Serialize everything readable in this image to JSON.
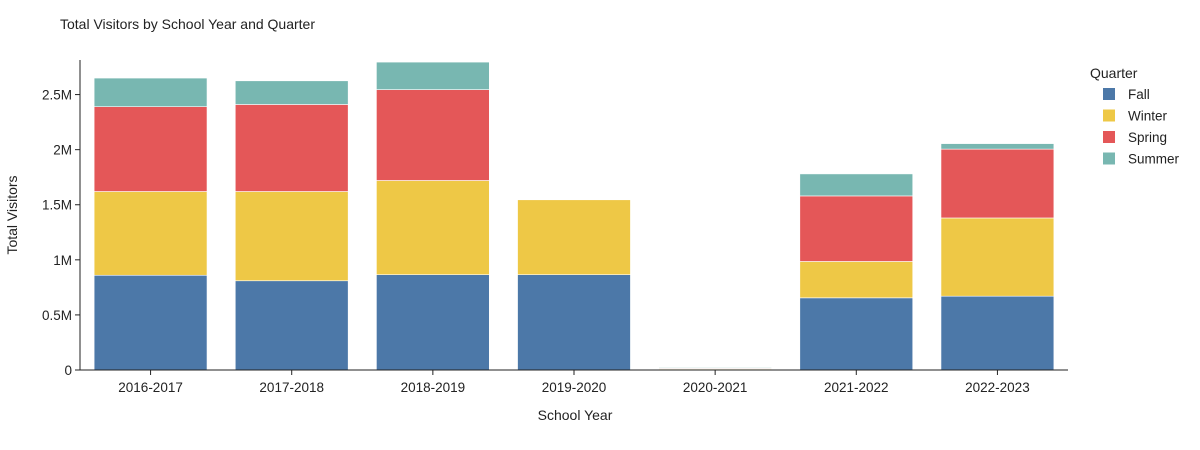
{
  "colors": {
    "Fall": "#4c78a8",
    "Winter": "#eec846",
    "Spring": "#e45758",
    "Summer": "#78b7b1",
    "axis": "#222222",
    "background": "#ffffff"
  },
  "chart_data": {
    "type": "bar",
    "stacked": true,
    "title": "Total Visitors by School Year and Quarter",
    "xlabel": "School Year",
    "ylabel": "Total Visitors",
    "ylim": [
      0,
      2950000
    ],
    "yticks": [
      0,
      500000,
      1000000,
      1500000,
      2000000,
      2500000
    ],
    "ytick_labels": [
      "0",
      "0.5M",
      "1M",
      "1.5M",
      "2M",
      "2.5M"
    ],
    "grid": false,
    "legend": {
      "title": "Quarter",
      "placement": "top-right"
    },
    "categories": [
      "2016-2017",
      "2017-2018",
      "2018-2019",
      "2019-2020",
      "2020-2021",
      "2021-2022",
      "2022-2023"
    ],
    "series": [
      {
        "name": "Fall",
        "values": [
          860000,
          810000,
          865000,
          865000,
          5000,
          655000,
          670000
        ]
      },
      {
        "name": "Winter",
        "values": [
          760000,
          810000,
          855000,
          680000,
          5000,
          330000,
          710000
        ]
      },
      {
        "name": "Spring",
        "values": [
          770000,
          790000,
          825000,
          0,
          5000,
          595000,
          625000
        ]
      },
      {
        "name": "Summer",
        "values": [
          260000,
          215000,
          250000,
          0,
          3000,
          200000,
          50000
        ]
      }
    ]
  }
}
